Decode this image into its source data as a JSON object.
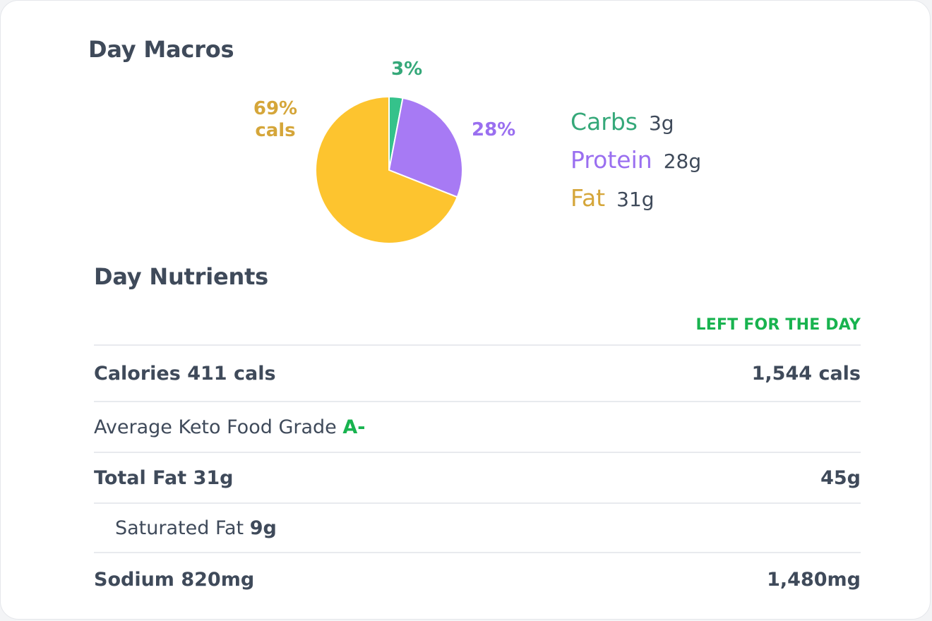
{
  "macros": {
    "title": "Day Macros",
    "chart_data": {
      "type": "pie",
      "labels": [
        "Carbs",
        "Protein",
        "Fat"
      ],
      "values": [
        3,
        28,
        69
      ],
      "colors": [
        "#35c28b",
        "#a77af4",
        "#fdc42f"
      ],
      "data_labels": [
        "3%",
        "28%",
        "69%"
      ],
      "fat_label_suffix": "cals"
    },
    "legend": [
      {
        "name": "Carbs",
        "value": "3g",
        "color": "#35a879"
      },
      {
        "name": "Protein",
        "value": "28g",
        "color": "#9a6ff0"
      },
      {
        "name": "Fat",
        "value": "31g",
        "color": "#d5a63a"
      }
    ]
  },
  "nutrients": {
    "title": "Day Nutrients",
    "left_header": "LEFT FOR THE DAY",
    "rows": [
      {
        "label": "Calories",
        "value": "411 cals",
        "left": "1,544 cals"
      },
      {
        "label": "Average Keto Food Grade",
        "grade": "A-"
      },
      {
        "label": "Total Fat",
        "value": "31g",
        "left": "45g"
      },
      {
        "label": "Saturated Fat",
        "value": "9g"
      },
      {
        "label": "Sodium",
        "value": "820mg",
        "left": "1,480mg"
      }
    ]
  }
}
